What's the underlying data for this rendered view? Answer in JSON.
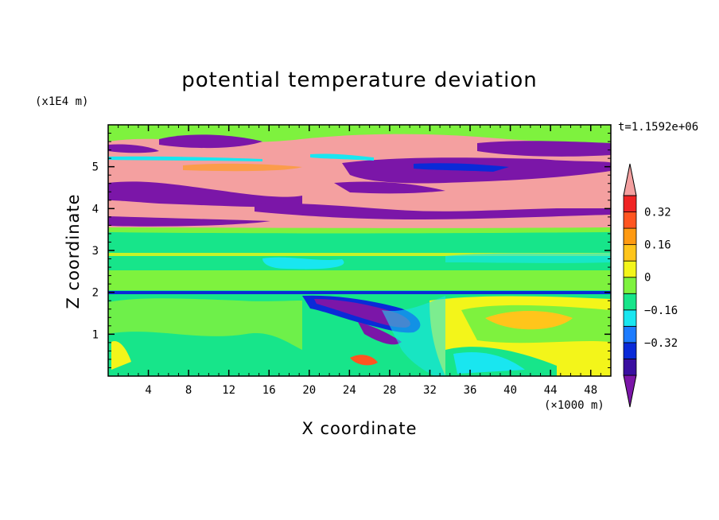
{
  "chart_data": {
    "type": "heatmap",
    "title": "potential temperature deviation",
    "xlabel": "X coordinate",
    "ylabel": "Z coordinate",
    "x_unit": "(×1000 m)",
    "z_unit": "(x1E4 m)",
    "time_label": "t=1.1592e+06",
    "xlim": [
      0,
      50
    ],
    "ylim": [
      0,
      6
    ],
    "x_ticks": [
      "4",
      "8",
      "12",
      "16",
      "20",
      "24",
      "28",
      "32",
      "36",
      "40",
      "44",
      "48"
    ],
    "y_ticks": [
      "1",
      "2",
      "3",
      "4",
      "5"
    ],
    "colorbar": {
      "levels": [
        -0.48,
        -0.4,
        -0.32,
        -0.24,
        -0.16,
        -0.08,
        0,
        0.08,
        0.16,
        0.24,
        0.32,
        0.4
      ],
      "labels": [
        "0.32",
        "0.16",
        "0",
        "-0.16",
        "-0.32"
      ],
      "colors": [
        "#7b16a8",
        "#3a0fa0",
        "#0a2ad8",
        "#1d7cff",
        "#19e6f0",
        "#17e58a",
        "#7ef23e",
        "#f3f51a",
        "#ffc51b",
        "#ff9a12",
        "#ff5520",
        "#f02424",
        "#f4a0a0"
      ],
      "extend": "both"
    }
  }
}
